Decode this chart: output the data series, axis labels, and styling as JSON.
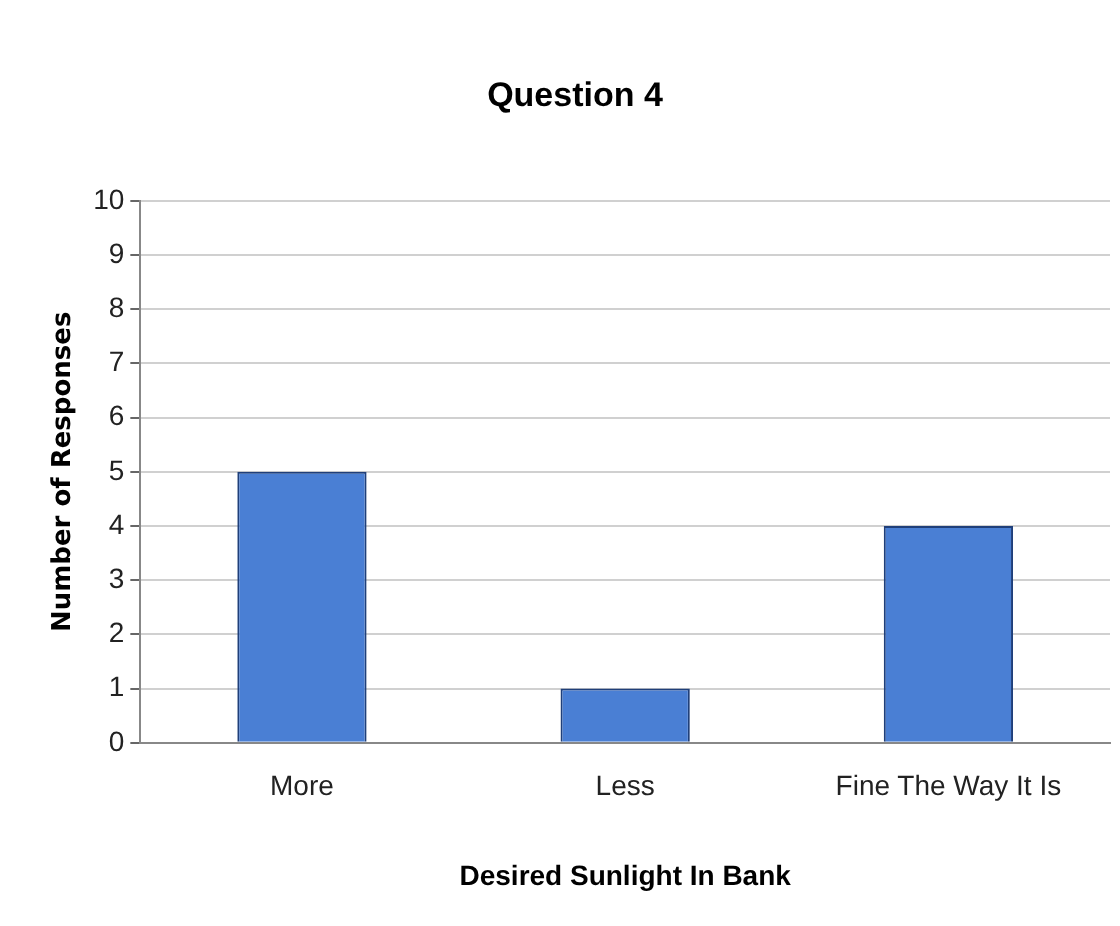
{
  "chart_data": {
    "type": "bar",
    "title": "Question 4",
    "xlabel": "Desired Sunlight In Bank",
    "ylabel": "Number of Responses",
    "categories": [
      "More",
      "Less",
      "Fine The Way It Is"
    ],
    "values": [
      5,
      1,
      4
    ],
    "color": "#4a7fd4",
    "ylim": [
      0,
      10
    ],
    "yticks": [
      0,
      1,
      2,
      3,
      4,
      5,
      6,
      7,
      8,
      9,
      10
    ],
    "grid": "y",
    "legend": false
  }
}
